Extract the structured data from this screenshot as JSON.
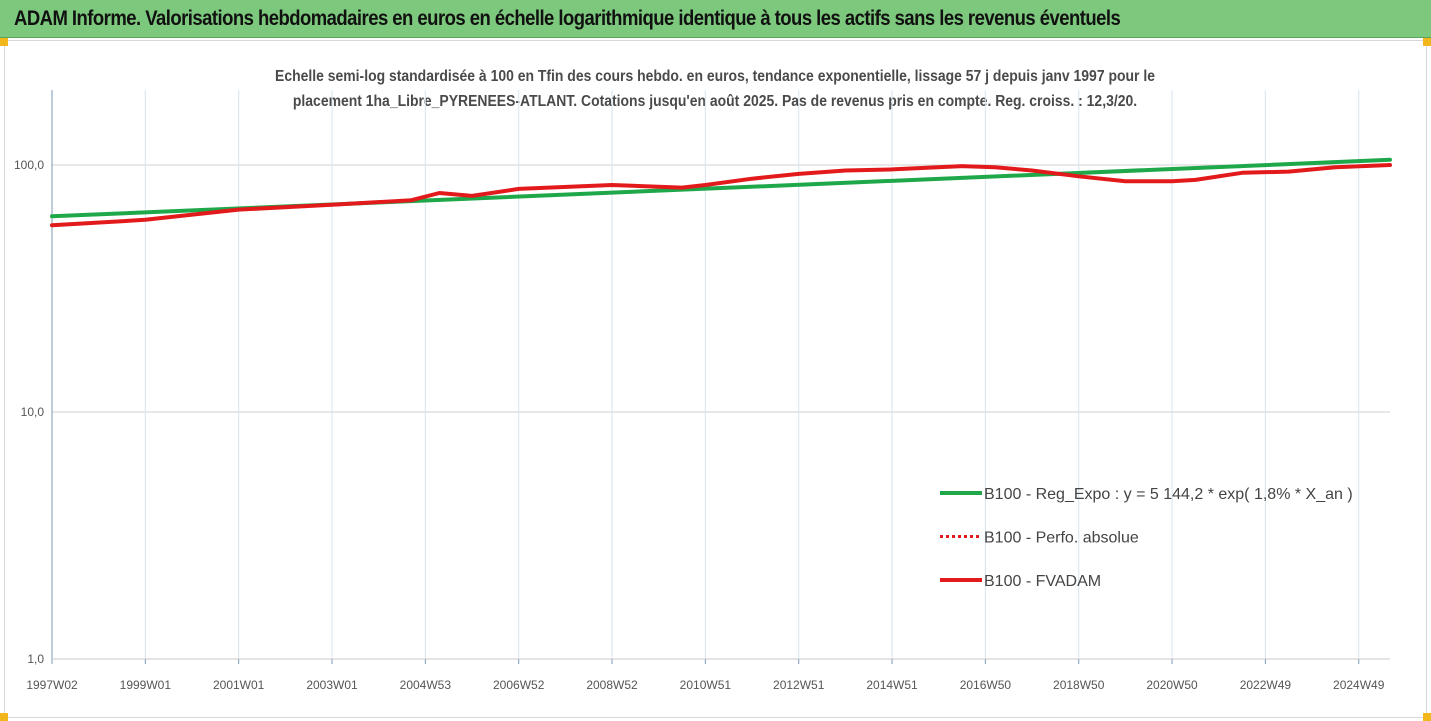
{
  "header": {
    "title": "ADAM Informe. Valorisations hebdomadaires en euros en échelle logarithmique identique à tous les actifs sans les revenus éventuels"
  },
  "chart_data": {
    "type": "line",
    "title_lines": [
      "Echelle semi-log standardisée à 100 en Tfin des cours hebdo. en euros, tendance exponentielle, lissage 57 j depuis janv 1997 pour le",
      "placement 1ha_Libre_PYRENEES-ATLANT. Cotations jusqu'en août 2025. Pas de revenus pris en compte. Reg. croiss. : 12,3/20."
    ],
    "y_scale": "log",
    "ylim": [
      1,
      200
    ],
    "y_ticks": [
      {
        "value": 1,
        "label": "1,0"
      },
      {
        "value": 10,
        "label": "10,0"
      },
      {
        "value": 100,
        "label": "100,0"
      }
    ],
    "x_range": [
      1997.0,
      2025.67
    ],
    "x_ticks": [
      {
        "x": 1997.0,
        "label": "1997W02"
      },
      {
        "x": 1999.0,
        "label": "1999W01"
      },
      {
        "x": 2001.0,
        "label": "2001W01"
      },
      {
        "x": 2003.0,
        "label": "2003W01"
      },
      {
        "x": 2005.0,
        "label": "2004W53"
      },
      {
        "x": 2007.0,
        "label": "2006W52"
      },
      {
        "x": 2009.0,
        "label": "2008W52"
      },
      {
        "x": 2011.0,
        "label": "2010W51"
      },
      {
        "x": 2013.0,
        "label": "2012W51"
      },
      {
        "x": 2015.0,
        "label": "2014W51"
      },
      {
        "x": 2017.0,
        "label": "2016W50"
      },
      {
        "x": 2019.0,
        "label": "2018W50"
      },
      {
        "x": 2021.0,
        "label": "2020W50"
      },
      {
        "x": 2023.0,
        "label": "2022W49"
      },
      {
        "x": 2025.0,
        "label": "2024W49"
      }
    ],
    "grid": true,
    "legend_position": "right",
    "series": [
      {
        "name": "B100 - Reg_Expo : y = 5 144,2 * exp( 1,8% *  X_an )",
        "color": "#1ea84a",
        "style": "solid",
        "x": [
          1997.0,
          2025.67
        ],
        "y": [
          62,
          105
        ]
      },
      {
        "name": "B100 - Perfo. absolue",
        "color": "#e31a1c",
        "style": "dotted",
        "x": [
          1997.0,
          1999.0,
          2001.0,
          2003.0,
          2004.7,
          2005.3,
          2006.0,
          2007.0,
          2009.0,
          2010.5,
          2011.0,
          2012.0,
          2013.0,
          2014.0,
          2015.0,
          2016.5,
          2017.2,
          2018.0,
          2019.0,
          2020.0,
          2021.0,
          2021.5,
          2022.5,
          2023.5,
          2024.5,
          2025.67
        ],
        "y": [
          57,
          60,
          66,
          69,
          72,
          77,
          75,
          80,
          83,
          81,
          83,
          88,
          92,
          95,
          96,
          99,
          98,
          95,
          90,
          86,
          86,
          87,
          93,
          94,
          98,
          100
        ]
      },
      {
        "name": "B100 - FVADAM",
        "color": "#e31a1c",
        "style": "solid",
        "x": [
          1997.0,
          1999.0,
          2001.0,
          2003.0,
          2004.7,
          2005.3,
          2006.0,
          2007.0,
          2009.0,
          2010.5,
          2011.0,
          2012.0,
          2013.0,
          2014.0,
          2015.0,
          2016.5,
          2017.2,
          2018.0,
          2019.0,
          2020.0,
          2021.0,
          2021.5,
          2022.5,
          2023.5,
          2024.5,
          2025.67
        ],
        "y": [
          57,
          60,
          66,
          69,
          72,
          77,
          75,
          80,
          83,
          81,
          83,
          88,
          92,
          95,
          96,
          99,
          98,
          95,
          90,
          86,
          86,
          87,
          93,
          94,
          98,
          100
        ]
      }
    ]
  }
}
